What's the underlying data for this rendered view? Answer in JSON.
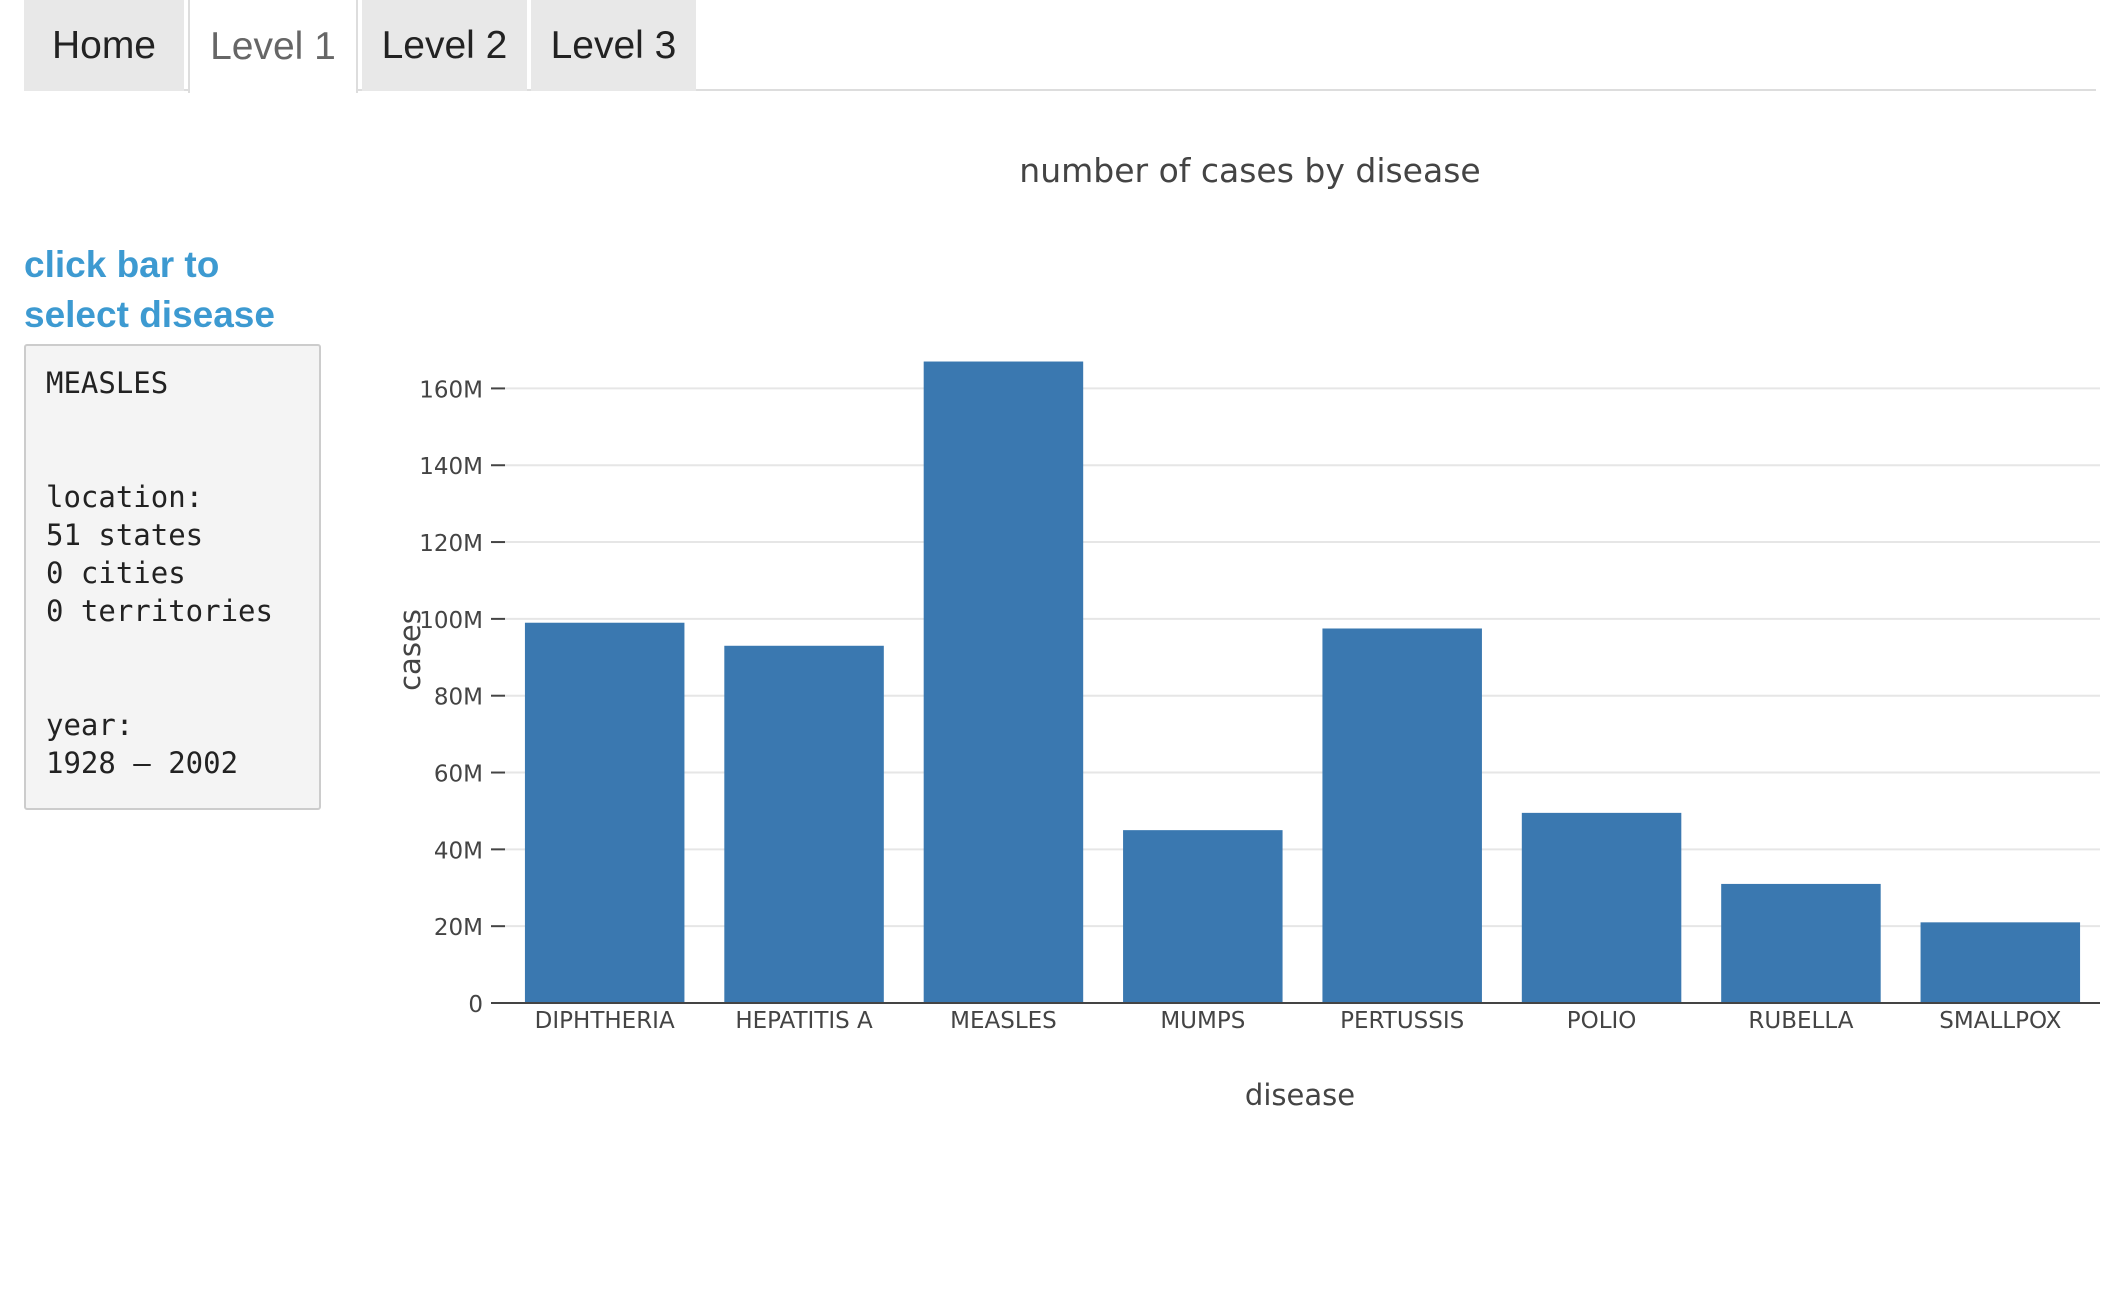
{
  "tabs": [
    {
      "label": "Home",
      "active": false
    },
    {
      "label": "Level 1",
      "active": true
    },
    {
      "label": "Level 2",
      "active": false
    },
    {
      "label": "Level 3",
      "active": false
    }
  ],
  "sidebar": {
    "hint_line1": "click bar to",
    "hint_line2": "select disease",
    "selected_disease": "MEASLES",
    "location_label": "location:",
    "states": "51 states",
    "cities": "0 cities",
    "territories": "0 territories",
    "year_label": "year:",
    "year_range": "1928 – 2002"
  },
  "colors": {
    "bar": "#3a78b0",
    "hint": "#3d9ad1",
    "grid": "#e6e6e6"
  },
  "chart_data": {
    "type": "bar",
    "title": "number of cases by disease",
    "xlabel": "disease",
    "ylabel": "cases",
    "categories": [
      "DIPHTHERIA",
      "HEPATITIS A",
      "MEASLES",
      "MUMPS",
      "PERTUSSIS",
      "POLIO",
      "RUBELLA",
      "SMALLPOX"
    ],
    "values": [
      99000000,
      93000000,
      167000000,
      45000000,
      97500000,
      49500000,
      31000000,
      21000000
    ],
    "ylim": [
      0,
      170000000
    ],
    "yticks": [
      0,
      20000000,
      40000000,
      60000000,
      80000000,
      100000000,
      120000000,
      140000000,
      160000000
    ],
    "ytick_labels": [
      "0",
      "20M",
      "40M",
      "60M",
      "80M",
      "100M",
      "120M",
      "140M",
      "160M"
    ],
    "grid": true
  }
}
